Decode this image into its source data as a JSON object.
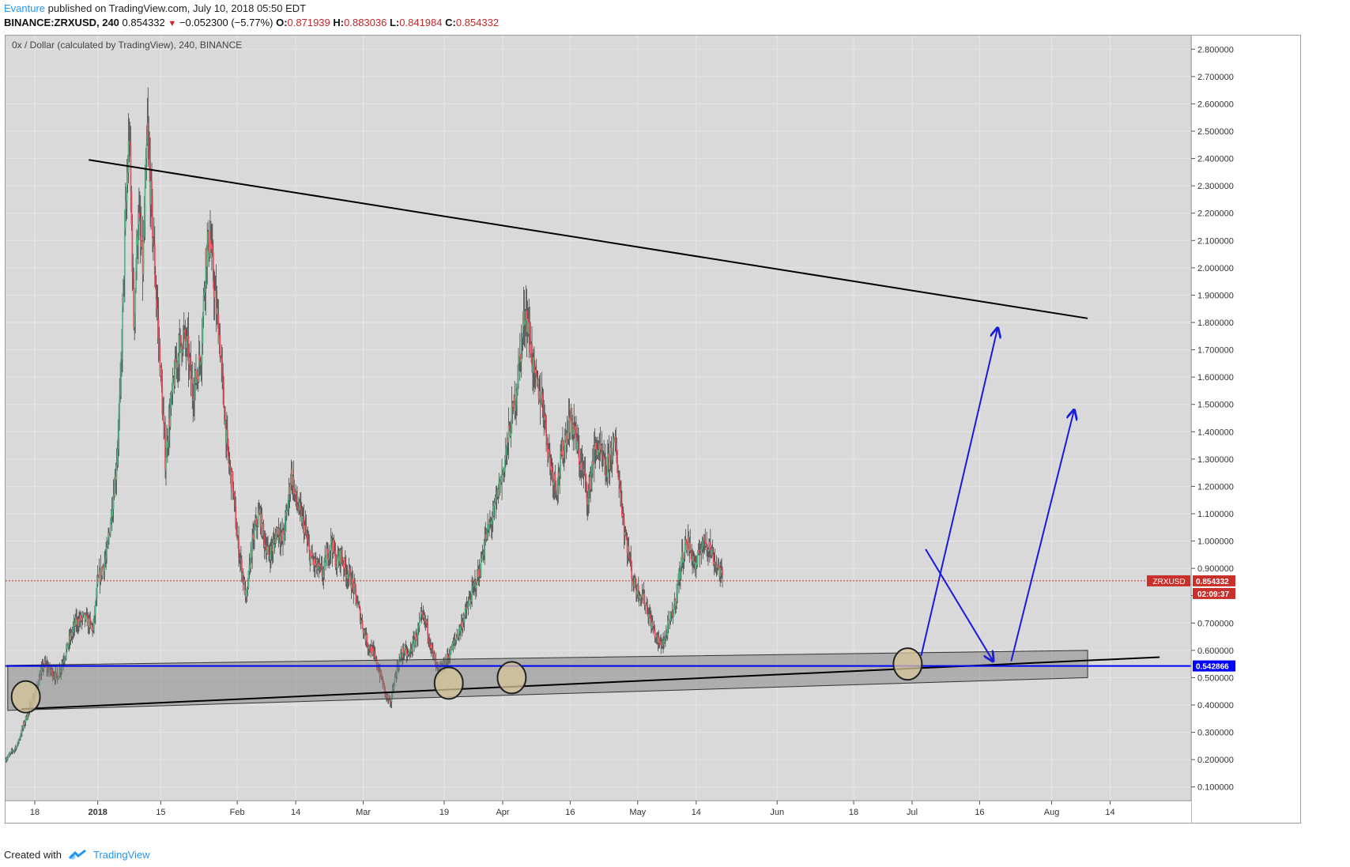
{
  "header": {
    "author": "Evanture",
    "published_text": "published on TradingView.com, July 10, 2018 05:50 EDT",
    "symbol_line": "BINANCE:ZRXUSD, 240",
    "last": "0.854332",
    "change": "−0.052300 (−5.77%)",
    "o_label": "O:",
    "o_val": "0.871939",
    "h_label": "H:",
    "h_val": "0.883036",
    "l_label": "L:",
    "l_val": "0.841984",
    "c_label": "C:",
    "c_val": "0.854332"
  },
  "footer": {
    "created_with": "Created with",
    "brand": "TradingView"
  },
  "colors": {
    "background": "#d9d9d9",
    "grid": "#e6e6e6",
    "up": "#53b987",
    "down": "#eb4d5c",
    "trend": "#000000",
    "arrow": "#1a1adb",
    "support_line": "#0000ff",
    "price_tag": "#c9302c",
    "circle_fill": "#d7c69a"
  },
  "chart_data": {
    "type": "candlestick",
    "title": "0x / Dollar (calculated by TradingView), 240, BINANCE",
    "ylim": [
      0.05,
      2.85
    ],
    "y_ticks": [
      0.1,
      0.2,
      0.3,
      0.4,
      0.5,
      0.6,
      0.7,
      0.8,
      0.9,
      1.0,
      1.1,
      1.2,
      1.3,
      1.4,
      1.5,
      1.6,
      1.7,
      1.8,
      1.9,
      2.0,
      2.1,
      2.2,
      2.3,
      2.4,
      2.5,
      2.6,
      2.7,
      2.8
    ],
    "y_tick_labels": [
      "0.100000",
      "0.200000",
      "0.300000",
      "0.400000",
      "0.500000",
      "0.600000",
      "0.700000",
      "0.800000",
      "0.900000",
      "1.000000",
      "1.100000",
      "1.200000",
      "1.300000",
      "1.400000",
      "1.500000",
      "1.600000",
      "1.700000",
      "1.800000",
      "1.900000",
      "2.000000",
      "2.100000",
      "2.200000",
      "2.300000",
      "2.400000",
      "2.500000",
      "2.600000",
      "2.700000",
      "2.800000"
    ],
    "x_range_days": [
      -20.5,
      243
    ],
    "x_ticks": [
      {
        "label": "18",
        "day": -14
      },
      {
        "label": "2018",
        "day": 0,
        "bold": true
      },
      {
        "label": "15",
        "day": 14
      },
      {
        "label": "Feb",
        "day": 31
      },
      {
        "label": "14",
        "day": 44
      },
      {
        "label": "Mar",
        "day": 59
      },
      {
        "label": "19",
        "day": 77
      },
      {
        "label": "Apr",
        "day": 90
      },
      {
        "label": "16",
        "day": 105
      },
      {
        "label": "May",
        "day": 120
      },
      {
        "label": "14",
        "day": 133
      },
      {
        "label": "Jun",
        "day": 151
      },
      {
        "label": "18",
        "day": 168
      },
      {
        "label": "Jul",
        "day": 181
      },
      {
        "label": "16",
        "day": 196
      },
      {
        "label": "Aug",
        "day": 212
      },
      {
        "label": "14",
        "day": 225
      }
    ],
    "price_path": [
      [
        -20.5,
        0.2
      ],
      [
        -18,
        0.25
      ],
      [
        -16,
        0.35
      ],
      [
        -14,
        0.44
      ],
      [
        -12,
        0.55
      ],
      [
        -9,
        0.5
      ],
      [
        -7,
        0.6
      ],
      [
        -5,
        0.7
      ],
      [
        -3,
        0.72
      ],
      [
        -1,
        0.68
      ],
      [
        0,
        0.85
      ],
      [
        1,
        0.9
      ],
      [
        2,
        0.95
      ],
      [
        3,
        1.1
      ],
      [
        4,
        1.25
      ],
      [
        5,
        1.55
      ],
      [
        6,
        2.1
      ],
      [
        7,
        2.5
      ],
      [
        8,
        1.8
      ],
      [
        9,
        2.2
      ],
      [
        10,
        2.0
      ],
      [
        11,
        2.5
      ],
      [
        12,
        2.2
      ],
      [
        13,
        1.9
      ],
      [
        14,
        1.6
      ],
      [
        15,
        1.3
      ],
      [
        16,
        1.45
      ],
      [
        17,
        1.6
      ],
      [
        18,
        1.7
      ],
      [
        19,
        1.75
      ],
      [
        20,
        1.7
      ],
      [
        21,
        1.55
      ],
      [
        22,
        1.6
      ],
      [
        23,
        1.7
      ],
      [
        24,
        2.05
      ],
      [
        25,
        2.1
      ],
      [
        26,
        1.9
      ],
      [
        27,
        1.75
      ],
      [
        28,
        1.5
      ],
      [
        29,
        1.3
      ],
      [
        30,
        1.2
      ],
      [
        31,
        1.0
      ],
      [
        32,
        0.9
      ],
      [
        33,
        0.78
      ],
      [
        34,
        0.95
      ],
      [
        35,
        1.05
      ],
      [
        36,
        1.1
      ],
      [
        37,
        1.0
      ],
      [
        38,
        0.95
      ],
      [
        39,
        0.98
      ],
      [
        40,
        1.05
      ],
      [
        41,
        1.0
      ],
      [
        42,
        1.1
      ],
      [
        43,
        1.25
      ],
      [
        44,
        1.15
      ],
      [
        45,
        1.1
      ],
      [
        46,
        1.05
      ],
      [
        47,
        0.95
      ],
      [
        48,
        0.92
      ],
      [
        49,
        0.9
      ],
      [
        50,
        0.88
      ],
      [
        51,
        0.95
      ],
      [
        52,
        1.0
      ],
      [
        53,
        0.92
      ],
      [
        54,
        0.95
      ],
      [
        55,
        0.9
      ],
      [
        56,
        0.87
      ],
      [
        57,
        0.82
      ],
      [
        58,
        0.75
      ],
      [
        59,
        0.68
      ],
      [
        60,
        0.62
      ],
      [
        61,
        0.6
      ],
      [
        62,
        0.55
      ],
      [
        63,
        0.5
      ],
      [
        64,
        0.44
      ],
      [
        65,
        0.4
      ],
      [
        66,
        0.5
      ],
      [
        67,
        0.56
      ],
      [
        68,
        0.6
      ],
      [
        69,
        0.58
      ],
      [
        70,
        0.62
      ],
      [
        71,
        0.66
      ],
      [
        72,
        0.72
      ],
      [
        73,
        0.7
      ],
      [
        74,
        0.62
      ],
      [
        75,
        0.55
      ],
      [
        76,
        0.52
      ],
      [
        77,
        0.55
      ],
      [
        78,
        0.58
      ],
      [
        79,
        0.62
      ],
      [
        80,
        0.66
      ],
      [
        81,
        0.7
      ],
      [
        82,
        0.75
      ],
      [
        83,
        0.8
      ],
      [
        84,
        0.85
      ],
      [
        85,
        0.9
      ],
      [
        86,
        1.0
      ],
      [
        87,
        1.05
      ],
      [
        88,
        1.1
      ],
      [
        89,
        1.18
      ],
      [
        90,
        1.25
      ],
      [
        91,
        1.35
      ],
      [
        92,
        1.45
      ],
      [
        93,
        1.55
      ],
      [
        94,
        1.7
      ],
      [
        95,
        1.85
      ],
      [
        96,
        1.75
      ],
      [
        97,
        1.6
      ],
      [
        98,
        1.55
      ],
      [
        99,
        1.5
      ],
      [
        100,
        1.35
      ],
      [
        101,
        1.25
      ],
      [
        102,
        1.2
      ],
      [
        103,
        1.3
      ],
      [
        104,
        1.38
      ],
      [
        105,
        1.45
      ],
      [
        106,
        1.4
      ],
      [
        107,
        1.3
      ],
      [
        108,
        1.25
      ],
      [
        109,
        1.15
      ],
      [
        110,
        1.3
      ],
      [
        111,
        1.35
      ],
      [
        112,
        1.3
      ],
      [
        113,
        1.25
      ],
      [
        114,
        1.32
      ],
      [
        115,
        1.35
      ],
      [
        116,
        1.2
      ],
      [
        117,
        1.05
      ],
      [
        118,
        0.95
      ],
      [
        119,
        0.85
      ],
      [
        120,
        0.82
      ],
      [
        121,
        0.8
      ],
      [
        122,
        0.76
      ],
      [
        123,
        0.7
      ],
      [
        124,
        0.65
      ],
      [
        125,
        0.62
      ],
      [
        126,
        0.64
      ],
      [
        127,
        0.7
      ],
      [
        128,
        0.75
      ],
      [
        129,
        0.85
      ],
      [
        130,
        0.95
      ],
      [
        131,
        1.0
      ],
      [
        132,
        0.95
      ],
      [
        133,
        0.9
      ],
      [
        134,
        0.98
      ],
      [
        135,
        1.0
      ],
      [
        136,
        0.98
      ],
      [
        137,
        0.93
      ],
      [
        138,
        0.9
      ],
      [
        139,
        0.85
      ]
    ],
    "annotations": {
      "resistance_line": [
        [
          -2,
          2.395
        ],
        [
          220,
          1.815
        ]
      ],
      "support_line": [
        [
          -17,
          0.385
        ],
        [
          236,
          0.575
        ]
      ],
      "channel": [
        [
          -20,
          0.545
        ],
        [
          220,
          0.6
        ],
        [
          220,
          0.5
        ],
        [
          -20,
          0.38
        ]
      ],
      "horizontal_level": 0.542866,
      "current_price": 0.854332,
      "circles": [
        [
          -16,
          0.43
        ],
        [
          78,
          0.48
        ],
        [
          92,
          0.5
        ],
        [
          180,
          0.55
        ]
      ],
      "arrows": [
        [
          [
            183,
            0.58
          ],
          [
            200,
            1.78
          ]
        ],
        [
          [
            184,
            0.97
          ],
          [
            199,
            0.56
          ]
        ],
        [
          [
            203,
            0.56
          ],
          [
            217,
            1.48
          ]
        ]
      ]
    },
    "price_tag_label": "ZRXUSD",
    "price_tag_value": "0.854332",
    "countdown": "02:09:37",
    "level_tag_value": "0.542866"
  }
}
